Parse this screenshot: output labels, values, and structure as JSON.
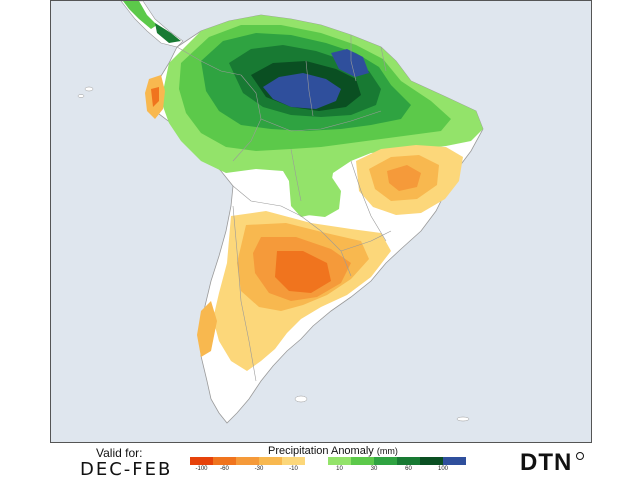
{
  "map": {
    "ocean_color": "#dfe6ee",
    "land_color": "#ffffff",
    "border_color": "#9a9a9a"
  },
  "footer": {
    "valid_label": "Valid for:",
    "valid_period": "DEC-FEB"
  },
  "legend": {
    "title": "Precipitation Anomaly",
    "unit": "(mm)",
    "ticks": [
      "-100",
      "-60",
      "-30",
      "-10",
      "10",
      "30",
      "60",
      "100"
    ],
    "dry_colors": [
      "#e6420a",
      "#f0741e",
      "#f59a3a",
      "#f8b84f",
      "#fcd77a"
    ],
    "wet_colors": [
      "#93e36a",
      "#5cc94a",
      "#2fa341",
      "#187a33",
      "#0a4f22",
      "#2f4f9c"
    ]
  },
  "brand": {
    "logo_text": "DTN"
  }
}
